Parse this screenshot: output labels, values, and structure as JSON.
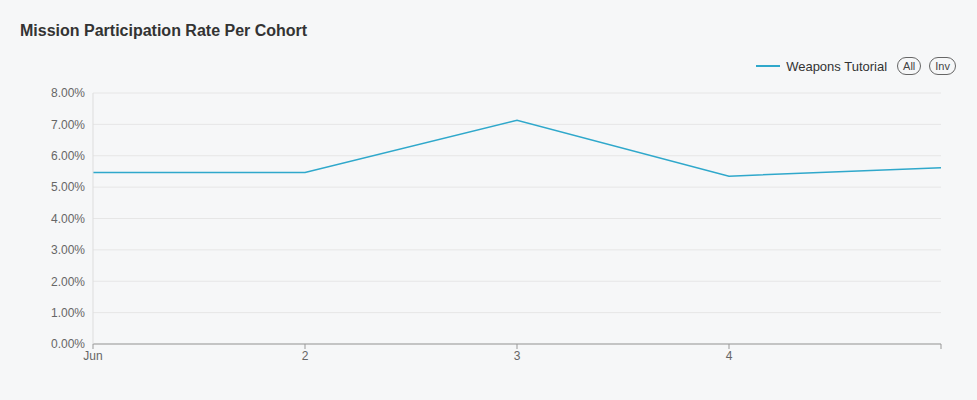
{
  "chart_data": {
    "type": "line",
    "title": "Mission Participation Rate Per Cohort",
    "categories": [
      "Jun",
      "2",
      "3",
      "4",
      null
    ],
    "series": [
      {
        "name": "Weapons Tutorial",
        "color": "#2fa8cb",
        "values": [
          5.47,
          5.47,
          7.13,
          5.35,
          5.62
        ]
      }
    ],
    "ylim": [
      0,
      8
    ],
    "yticks": [
      {
        "value": 0,
        "label": "0.00%"
      },
      {
        "value": 1,
        "label": "1.00%"
      },
      {
        "value": 2,
        "label": "2.00%"
      },
      {
        "value": 3,
        "label": "3.00%"
      },
      {
        "value": 4,
        "label": "4.00%"
      },
      {
        "value": 5,
        "label": "5.00%"
      },
      {
        "value": 6,
        "label": "6.00%"
      },
      {
        "value": 7,
        "label": "7.00%"
      },
      {
        "value": 8,
        "label": "8.00%"
      }
    ],
    "grid": true,
    "legend": "top-right",
    "buttons": [
      "All",
      "Inv"
    ]
  }
}
